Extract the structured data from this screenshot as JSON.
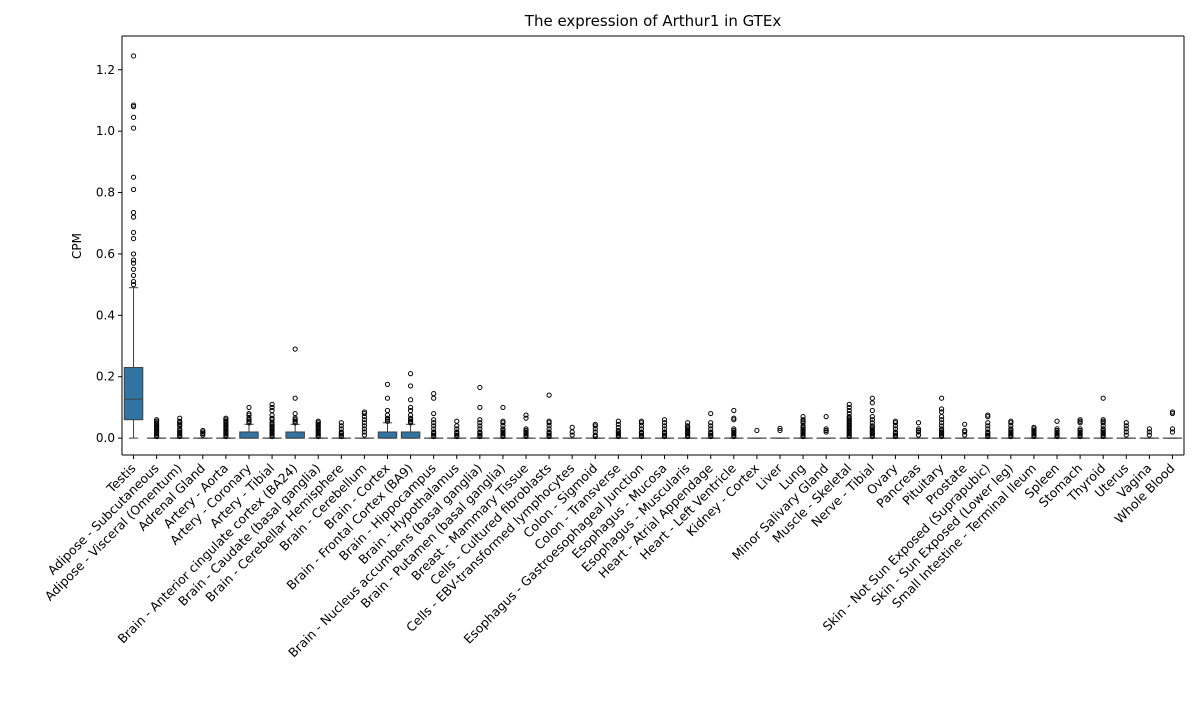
{
  "chart_data": {
    "type": "box",
    "title": "The expression of Arthur1 in GTEx",
    "xlabel": "",
    "ylabel": "CPM",
    "ylim": [
      -0.055,
      1.31
    ],
    "yticks": [
      "0.0",
      "0.2",
      "0.4",
      "0.6",
      "0.8",
      "1.0",
      "1.2"
    ],
    "grid": false,
    "box_color": "#3274a1",
    "categories": [
      "Testis",
      "Adipose - Subcutaneous",
      "Adipose - Visceral (Omentum)",
      "Adrenal Gland",
      "Artery - Aorta",
      "Artery - Coronary",
      "Artery - Tibial",
      "Brain - Anterior cingulate cortex (BA24)",
      "Brain - Caudate (basal ganglia)",
      "Brain - Cerebellar Hemisphere",
      "Brain - Cerebellum",
      "Brain - Cortex",
      "Brain - Frontal Cortex (BA9)",
      "Brain - Hippocampus",
      "Brain - Hypothalamus",
      "Brain - Nucleus accumbens (basal ganglia)",
      "Brain - Putamen (basal ganglia)",
      "Breast - Mammary Tissue",
      "Cells - Cultured fibroblasts",
      "Cells - EBV-transformed lymphocytes",
      "Colon - Sigmoid",
      "Colon - Transverse",
      "Esophagus - Gastroesophageal Junction",
      "Esophagus - Mucosa",
      "Esophagus - Muscularis",
      "Heart - Atrial Appendage",
      "Heart - Left Ventricle",
      "Kidney - Cortex",
      "Liver",
      "Lung",
      "Minor Salivary Gland",
      "Muscle - Skeletal",
      "Nerve - Tibial",
      "Ovary",
      "Pancreas",
      "Pituitary",
      "Prostate",
      "Skin - Not Sun Exposed (Suprapubic)",
      "Skin - Sun Exposed (Lower leg)",
      "Small Intestine - Terminal Ileum",
      "Spleen",
      "Stomach",
      "Thyroid",
      "Uterus",
      "Vagina",
      "Whole Blood"
    ],
    "boxes": [
      {
        "q1": 0.06,
        "median": 0.127,
        "q3": 0.23,
        "whislo": 0.0,
        "whishi": 0.49,
        "fliers": [
          0.5,
          0.51,
          0.53,
          0.55,
          0.57,
          0.58,
          0.6,
          0.65,
          0.67,
          0.72,
          0.735,
          0.81,
          0.85,
          1.01,
          1.045,
          1.08,
          1.085,
          1.245
        ]
      },
      {
        "q1": 0.0,
        "median": 0.0,
        "q3": 0.0,
        "whislo": 0.0,
        "whishi": 0.0,
        "fliers": [
          0.005,
          0.01,
          0.015,
          0.02,
          0.025,
          0.03,
          0.035,
          0.04,
          0.045,
          0.05,
          0.055,
          0.06
        ]
      },
      {
        "q1": 0.0,
        "median": 0.0,
        "q3": 0.0,
        "whislo": 0.0,
        "whishi": 0.0,
        "fliers": [
          0.005,
          0.01,
          0.015,
          0.02,
          0.025,
          0.03,
          0.04,
          0.045,
          0.05,
          0.055,
          0.065
        ]
      },
      {
        "q1": 0.0,
        "median": 0.0,
        "q3": 0.0,
        "whislo": 0.0,
        "whishi": 0.0,
        "fliers": [
          0.01,
          0.015,
          0.02,
          0.025
        ]
      },
      {
        "q1": 0.0,
        "median": 0.0,
        "q3": 0.0,
        "whislo": 0.0,
        "whishi": 0.0,
        "fliers": [
          0.005,
          0.01,
          0.015,
          0.02,
          0.025,
          0.03,
          0.035,
          0.04,
          0.045,
          0.05,
          0.055,
          0.06,
          0.065
        ]
      },
      {
        "q1": 0.0,
        "median": 0.0,
        "q3": 0.02,
        "whislo": 0.0,
        "whishi": 0.045,
        "fliers": [
          0.05,
          0.055,
          0.06,
          0.065,
          0.075,
          0.08,
          0.1
        ]
      },
      {
        "q1": 0.0,
        "median": 0.0,
        "q3": 0.0,
        "whislo": 0.0,
        "whishi": 0.0,
        "fliers": [
          0.005,
          0.01,
          0.015,
          0.02,
          0.025,
          0.03,
          0.035,
          0.04,
          0.045,
          0.05,
          0.06,
          0.065,
          0.075,
          0.09,
          0.1,
          0.11
        ]
      },
      {
        "q1": 0.0,
        "median": 0.0,
        "q3": 0.02,
        "whislo": 0.0,
        "whishi": 0.045,
        "fliers": [
          0.05,
          0.055,
          0.06,
          0.065,
          0.08,
          0.13,
          0.29
        ]
      },
      {
        "q1": 0.0,
        "median": 0.0,
        "q3": 0.0,
        "whislo": 0.0,
        "whishi": 0.0,
        "fliers": [
          0.005,
          0.01,
          0.015,
          0.02,
          0.025,
          0.03,
          0.035,
          0.04,
          0.045,
          0.05,
          0.055
        ]
      },
      {
        "q1": 0.0,
        "median": 0.0,
        "q3": 0.0,
        "whislo": 0.0,
        "whishi": 0.0,
        "fliers": [
          0.005,
          0.01,
          0.015,
          0.02,
          0.03,
          0.04,
          0.05
        ]
      },
      {
        "q1": 0.0,
        "median": 0.0,
        "q3": 0.0,
        "whislo": 0.0,
        "whishi": 0.0,
        "fliers": [
          0.01,
          0.02,
          0.03,
          0.04,
          0.05,
          0.06,
          0.07,
          0.08,
          0.085
        ]
      },
      {
        "q1": 0.0,
        "median": 0.0,
        "q3": 0.02,
        "whislo": 0.0,
        "whishi": 0.05,
        "fliers": [
          0.055,
          0.06,
          0.065,
          0.075,
          0.09,
          0.13,
          0.175
        ]
      },
      {
        "q1": 0.0,
        "median": 0.0,
        "q3": 0.02,
        "whislo": 0.0,
        "whishi": 0.045,
        "fliers": [
          0.05,
          0.055,
          0.06,
          0.065,
          0.075,
          0.09,
          0.1,
          0.125,
          0.17,
          0.21
        ]
      },
      {
        "q1": 0.0,
        "median": 0.0,
        "q3": 0.0,
        "whislo": 0.0,
        "whishi": 0.0,
        "fliers": [
          0.005,
          0.01,
          0.015,
          0.02,
          0.03,
          0.04,
          0.05,
          0.06,
          0.08,
          0.13,
          0.145
        ]
      },
      {
        "q1": 0.0,
        "median": 0.0,
        "q3": 0.0,
        "whislo": 0.0,
        "whishi": 0.0,
        "fliers": [
          0.005,
          0.01,
          0.015,
          0.02,
          0.03,
          0.04,
          0.055
        ]
      },
      {
        "q1": 0.0,
        "median": 0.0,
        "q3": 0.0,
        "whislo": 0.0,
        "whishi": 0.0,
        "fliers": [
          0.005,
          0.01,
          0.015,
          0.02,
          0.03,
          0.04,
          0.05,
          0.06,
          0.1,
          0.165
        ]
      },
      {
        "q1": 0.0,
        "median": 0.0,
        "q3": 0.0,
        "whislo": 0.0,
        "whishi": 0.0,
        "fliers": [
          0.005,
          0.01,
          0.015,
          0.02,
          0.025,
          0.03,
          0.04,
          0.05,
          0.055,
          0.1
        ]
      },
      {
        "q1": 0.0,
        "median": 0.0,
        "q3": 0.0,
        "whislo": 0.0,
        "whishi": 0.0,
        "fliers": [
          0.005,
          0.01,
          0.015,
          0.02,
          0.025,
          0.03,
          0.065,
          0.075
        ]
      },
      {
        "q1": 0.0,
        "median": 0.0,
        "q3": 0.0,
        "whislo": 0.0,
        "whishi": 0.0,
        "fliers": [
          0.005,
          0.01,
          0.015,
          0.02,
          0.03,
          0.04,
          0.05,
          0.055,
          0.14
        ]
      },
      {
        "q1": 0.0,
        "median": 0.0,
        "q3": 0.0,
        "whislo": 0.0,
        "whishi": 0.0,
        "fliers": [
          0.01,
          0.02,
          0.035
        ]
      },
      {
        "q1": 0.0,
        "median": 0.0,
        "q3": 0.0,
        "whislo": 0.0,
        "whishi": 0.0,
        "fliers": [
          0.005,
          0.01,
          0.02,
          0.03,
          0.04,
          0.045
        ]
      },
      {
        "q1": 0.0,
        "median": 0.0,
        "q3": 0.0,
        "whislo": 0.0,
        "whishi": 0.0,
        "fliers": [
          0.005,
          0.01,
          0.015,
          0.02,
          0.025,
          0.035,
          0.045,
          0.055
        ]
      },
      {
        "q1": 0.0,
        "median": 0.0,
        "q3": 0.0,
        "whislo": 0.0,
        "whishi": 0.0,
        "fliers": [
          0.005,
          0.01,
          0.015,
          0.02,
          0.03,
          0.04,
          0.05,
          0.055
        ]
      },
      {
        "q1": 0.0,
        "median": 0.0,
        "q3": 0.0,
        "whislo": 0.0,
        "whishi": 0.0,
        "fliers": [
          0.005,
          0.01,
          0.015,
          0.02,
          0.03,
          0.04,
          0.05,
          0.06
        ]
      },
      {
        "q1": 0.0,
        "median": 0.0,
        "q3": 0.0,
        "whislo": 0.0,
        "whishi": 0.0,
        "fliers": [
          0.005,
          0.01,
          0.015,
          0.02,
          0.025,
          0.03,
          0.035,
          0.04,
          0.05
        ]
      },
      {
        "q1": 0.0,
        "median": 0.0,
        "q3": 0.0,
        "whislo": 0.0,
        "whishi": 0.0,
        "fliers": [
          0.005,
          0.01,
          0.015,
          0.02,
          0.03,
          0.04,
          0.05,
          0.08
        ]
      },
      {
        "q1": 0.0,
        "median": 0.0,
        "q3": 0.0,
        "whislo": 0.0,
        "whishi": 0.0,
        "fliers": [
          0.005,
          0.01,
          0.015,
          0.02,
          0.025,
          0.03,
          0.06,
          0.065,
          0.09
        ]
      },
      {
        "q1": 0.0,
        "median": 0.0,
        "q3": 0.0,
        "whislo": 0.0,
        "whishi": 0.0,
        "fliers": [
          0.025
        ]
      },
      {
        "q1": 0.0,
        "median": 0.0,
        "q3": 0.0,
        "whislo": 0.0,
        "whishi": 0.0,
        "fliers": [
          0.025,
          0.032
        ]
      },
      {
        "q1": 0.0,
        "median": 0.0,
        "q3": 0.0,
        "whislo": 0.0,
        "whishi": 0.0,
        "fliers": [
          0.005,
          0.01,
          0.015,
          0.02,
          0.025,
          0.03,
          0.035,
          0.04,
          0.05,
          0.055,
          0.06,
          0.07
        ]
      },
      {
        "q1": 0.0,
        "median": 0.0,
        "q3": 0.0,
        "whislo": 0.0,
        "whishi": 0.0,
        "fliers": [
          0.02,
          0.025,
          0.03,
          0.07
        ]
      },
      {
        "q1": 0.0,
        "median": 0.0,
        "q3": 0.0,
        "whislo": 0.0,
        "whishi": 0.0,
        "fliers": [
          0.005,
          0.01,
          0.015,
          0.02,
          0.025,
          0.03,
          0.035,
          0.04,
          0.045,
          0.05,
          0.055,
          0.06,
          0.065,
          0.07,
          0.08,
          0.09,
          0.1,
          0.11
        ]
      },
      {
        "q1": 0.0,
        "median": 0.0,
        "q3": 0.0,
        "whislo": 0.0,
        "whishi": 0.0,
        "fliers": [
          0.005,
          0.01,
          0.015,
          0.02,
          0.025,
          0.03,
          0.035,
          0.04,
          0.05,
          0.06,
          0.07,
          0.09,
          0.115,
          0.13
        ]
      },
      {
        "q1": 0.0,
        "median": 0.0,
        "q3": 0.0,
        "whislo": 0.0,
        "whishi": 0.0,
        "fliers": [
          0.005,
          0.01,
          0.015,
          0.02,
          0.03,
          0.04,
          0.05,
          0.055
        ]
      },
      {
        "q1": 0.0,
        "median": 0.0,
        "q3": 0.0,
        "whislo": 0.0,
        "whishi": 0.0,
        "fliers": [
          0.01,
          0.02,
          0.025,
          0.03,
          0.05
        ]
      },
      {
        "q1": 0.0,
        "median": 0.0,
        "q3": 0.0,
        "whislo": 0.0,
        "whishi": 0.0,
        "fliers": [
          0.005,
          0.01,
          0.015,
          0.02,
          0.025,
          0.03,
          0.04,
          0.05,
          0.06,
          0.07,
          0.085,
          0.095,
          0.13
        ]
      },
      {
        "q1": 0.0,
        "median": 0.0,
        "q3": 0.0,
        "whislo": 0.0,
        "whishi": 0.0,
        "fliers": [
          0.01,
          0.02,
          0.025,
          0.045
        ]
      },
      {
        "q1": 0.0,
        "median": 0.0,
        "q3": 0.0,
        "whislo": 0.0,
        "whishi": 0.0,
        "fliers": [
          0.005,
          0.01,
          0.015,
          0.02,
          0.03,
          0.04,
          0.05,
          0.07,
          0.075
        ]
      },
      {
        "q1": 0.0,
        "median": 0.0,
        "q3": 0.0,
        "whislo": 0.0,
        "whishi": 0.0,
        "fliers": [
          0.005,
          0.01,
          0.015,
          0.02,
          0.025,
          0.03,
          0.04,
          0.05,
          0.055
        ]
      },
      {
        "q1": 0.0,
        "median": 0.0,
        "q3": 0.0,
        "whislo": 0.0,
        "whishi": 0.0,
        "fliers": [
          0.005,
          0.01,
          0.015,
          0.02,
          0.025,
          0.03,
          0.035
        ]
      },
      {
        "q1": 0.0,
        "median": 0.0,
        "q3": 0.0,
        "whislo": 0.0,
        "whishi": 0.0,
        "fliers": [
          0.005,
          0.01,
          0.015,
          0.02,
          0.025,
          0.03,
          0.055
        ]
      },
      {
        "q1": 0.0,
        "median": 0.0,
        "q3": 0.0,
        "whislo": 0.0,
        "whishi": 0.0,
        "fliers": [
          0.005,
          0.01,
          0.015,
          0.02,
          0.025,
          0.03,
          0.05,
          0.055,
          0.06
        ]
      },
      {
        "q1": 0.0,
        "median": 0.0,
        "q3": 0.0,
        "whislo": 0.0,
        "whishi": 0.0,
        "fliers": [
          0.005,
          0.01,
          0.015,
          0.02,
          0.025,
          0.03,
          0.04,
          0.05,
          0.055,
          0.06,
          0.13
        ]
      },
      {
        "q1": 0.0,
        "median": 0.0,
        "q3": 0.0,
        "whislo": 0.0,
        "whishi": 0.0,
        "fliers": [
          0.01,
          0.02,
          0.03,
          0.04,
          0.05
        ]
      },
      {
        "q1": 0.0,
        "median": 0.0,
        "q3": 0.0,
        "whislo": 0.0,
        "whishi": 0.0,
        "fliers": [
          0.01,
          0.02,
          0.03
        ]
      },
      {
        "q1": 0.0,
        "median": 0.0,
        "q3": 0.0,
        "whislo": 0.0,
        "whishi": 0.0,
        "fliers": [
          0.02,
          0.03,
          0.08,
          0.085
        ]
      }
    ]
  }
}
